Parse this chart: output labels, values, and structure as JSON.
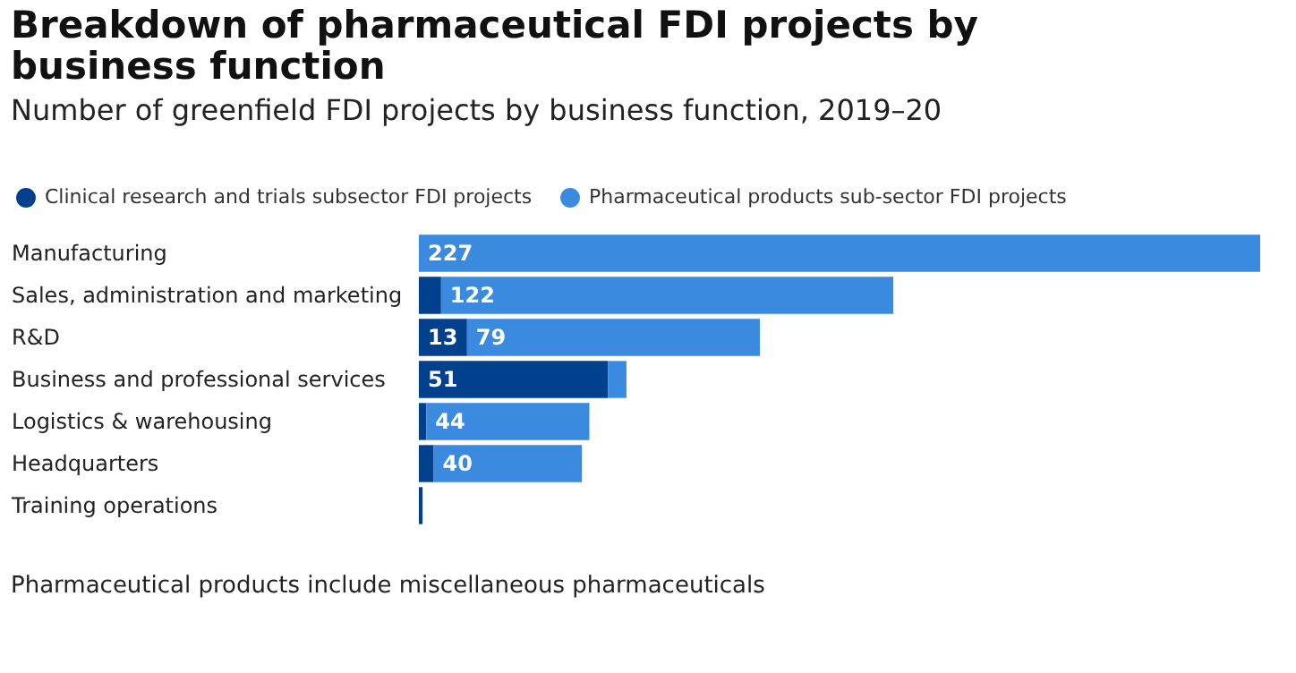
{
  "chart_data": {
    "type": "bar",
    "orientation": "horizontal",
    "stacked": true,
    "legend": "top left",
    "title": "Breakdown of pharmaceutical FDI projects by business function",
    "subtitle": "Number of greenfield FDI projects by business function, 2019–20",
    "categories": [
      "Manufacturing",
      "Sales, administration and marketing",
      "R&D",
      "Business and professional services",
      "Logistics & warehousing",
      "Headquarters",
      "Training operations"
    ],
    "series": [
      {
        "name": "Clinical research and trials subsector FDI projects",
        "color": "#00408c",
        "values": [
          0,
          6,
          13,
          51,
          2,
          4,
          1
        ],
        "value_labels": [
          null,
          null,
          "13",
          "51",
          null,
          null,
          null
        ]
      },
      {
        "name": "Pharmaceutical products sub-sector FDI projects",
        "color": "#3a8ae0",
        "values": [
          227,
          122,
          79,
          5,
          44,
          40,
          0
        ],
        "value_labels": [
          "227",
          "122",
          "79",
          null,
          "44",
          "40",
          null
        ]
      }
    ],
    "annotations": [
      "Pharmaceutical products include miscellaneous pharmaceuticals"
    ]
  }
}
